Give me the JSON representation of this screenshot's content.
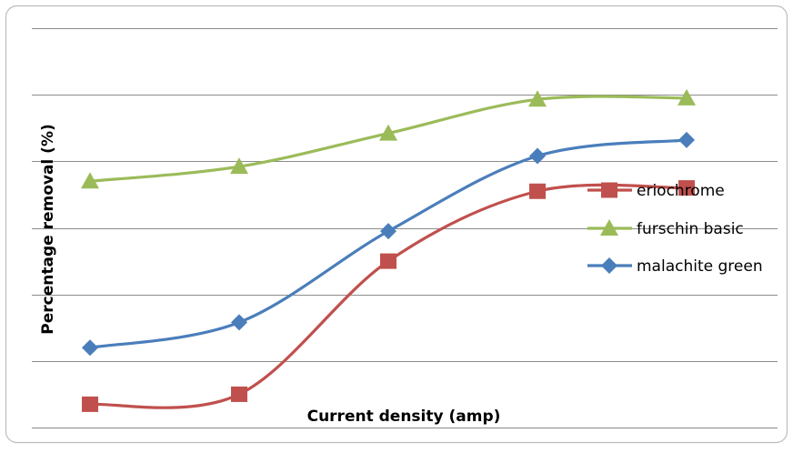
{
  "chart_data": {
    "type": "line",
    "title": "",
    "xlabel": "Current density (amp)",
    "ylabel": "Percentage removal (%)",
    "x": [
      1,
      2,
      3,
      4,
      5
    ],
    "ylim": [
      0,
      6
    ],
    "grid": true,
    "smooth": true,
    "legend_position": "right",
    "series": [
      {
        "name": "eriochrome",
        "values": [
          0.35,
          0.5,
          2.5,
          3.55,
          3.6
        ],
        "color": "#c0504d",
        "marker": "square"
      },
      {
        "name": "furschin basic",
        "values": [
          3.7,
          3.92,
          4.42,
          4.93,
          4.95
        ],
        "color": "#9bbb59",
        "marker": "triangle"
      },
      {
        "name": "malachite green",
        "values": [
          1.2,
          1.58,
          2.95,
          4.08,
          4.32
        ],
        "color": "#4a7ebb",
        "marker": "diamond"
      }
    ]
  }
}
